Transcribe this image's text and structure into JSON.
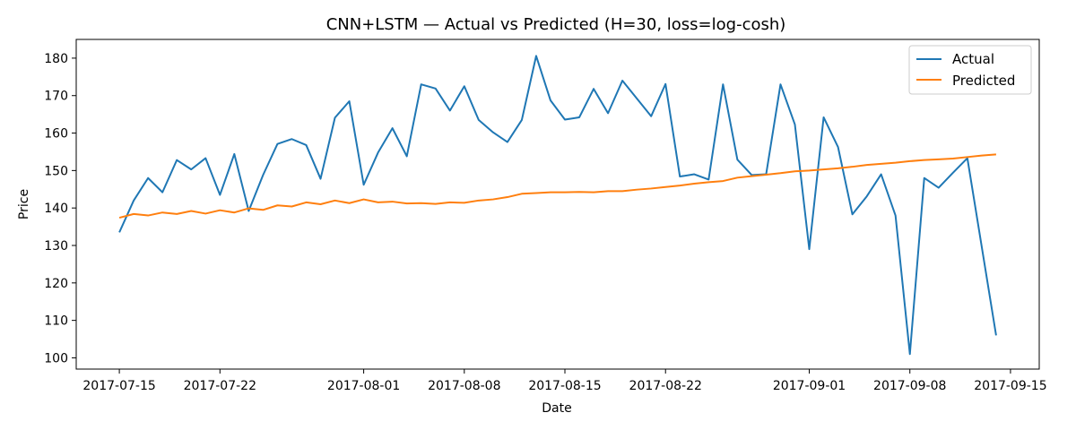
{
  "chart_data": {
    "type": "line",
    "title": "CNN+LSTM — Actual vs Predicted (H=30, loss=log-cosh)",
    "xlabel": "Date",
    "ylabel": "Price",
    "x_start": "2017-07-15",
    "x_range": [
      "2017-07-12",
      "2017-09-17"
    ],
    "ylim": [
      97,
      185
    ],
    "x_ticks": [
      {
        "date": "2017-07-15",
        "label": "2017-07-15"
      },
      {
        "date": "2017-07-22",
        "label": "2017-07-22"
      },
      {
        "date": "2017-08-01",
        "label": "2017-08-01"
      },
      {
        "date": "2017-08-08",
        "label": "2017-08-08"
      },
      {
        "date": "2017-08-15",
        "label": "2017-08-15"
      },
      {
        "date": "2017-08-22",
        "label": "2017-08-22"
      },
      {
        "date": "2017-09-01",
        "label": "2017-09-01"
      },
      {
        "date": "2017-09-08",
        "label": "2017-09-08"
      },
      {
        "date": "2017-09-15",
        "label": "2017-09-15"
      }
    ],
    "y_ticks": [
      100,
      110,
      120,
      130,
      140,
      150,
      160,
      170,
      180
    ],
    "legend": "top-right",
    "grid": false,
    "series": [
      {
        "name": "Actual",
        "color": "#1f77b4",
        "points": [
          [
            "2017-07-15",
            133.5
          ],
          [
            "2017-07-16",
            142.0
          ],
          [
            "2017-07-17",
            148.0
          ],
          [
            "2017-07-18",
            144.2
          ],
          [
            "2017-07-19",
            152.8
          ],
          [
            "2017-07-20",
            150.3
          ],
          [
            "2017-07-21",
            153.3
          ],
          [
            "2017-07-22",
            143.5
          ],
          [
            "2017-07-23",
            154.4
          ],
          [
            "2017-07-24",
            139.2
          ],
          [
            "2017-07-25",
            148.8
          ],
          [
            "2017-07-26",
            157.1
          ],
          [
            "2017-07-27",
            158.4
          ],
          [
            "2017-07-28",
            156.8
          ],
          [
            "2017-07-29",
            147.8
          ],
          [
            "2017-07-30",
            164.1
          ],
          [
            "2017-07-31",
            168.5
          ],
          [
            "2017-08-01",
            146.2
          ],
          [
            "2017-08-02",
            154.8
          ],
          [
            "2017-08-03",
            161.3
          ],
          [
            "2017-08-04",
            153.8
          ],
          [
            "2017-08-05",
            173.0
          ],
          [
            "2017-08-06",
            171.9
          ],
          [
            "2017-08-07",
            166.0
          ],
          [
            "2017-08-08",
            172.5
          ],
          [
            "2017-08-09",
            163.5
          ],
          [
            "2017-08-10",
            160.2
          ],
          [
            "2017-08-11",
            157.6
          ],
          [
            "2017-08-12",
            163.5
          ],
          [
            "2017-08-13",
            180.6
          ],
          [
            "2017-08-14",
            168.7
          ],
          [
            "2017-08-15",
            163.6
          ],
          [
            "2017-08-16",
            164.2
          ],
          [
            "2017-08-17",
            171.8
          ],
          [
            "2017-08-18",
            165.3
          ],
          [
            "2017-08-19",
            174.0
          ],
          [
            "2017-08-21",
            164.5
          ],
          [
            "2017-08-22",
            173.1
          ],
          [
            "2017-08-23",
            148.4
          ],
          [
            "2017-08-24",
            149.0
          ],
          [
            "2017-08-25",
            147.6
          ],
          [
            "2017-08-26",
            173.0
          ],
          [
            "2017-08-27",
            152.9
          ],
          [
            "2017-08-28",
            148.8
          ],
          [
            "2017-08-29",
            149.0
          ],
          [
            "2017-08-30",
            173.0
          ],
          [
            "2017-08-31",
            162.3
          ],
          [
            "2017-09-01",
            129.0
          ],
          [
            "2017-09-02",
            164.2
          ],
          [
            "2017-09-03",
            156.3
          ],
          [
            "2017-09-04",
            138.3
          ],
          [
            "2017-09-05",
            143.1
          ],
          [
            "2017-09-06",
            149.0
          ],
          [
            "2017-09-07",
            138.0
          ],
          [
            "2017-09-08",
            101.0
          ],
          [
            "2017-09-09",
            148.0
          ],
          [
            "2017-09-10",
            145.4
          ],
          [
            "2017-09-11",
            149.4
          ],
          [
            "2017-09-12",
            153.3
          ],
          [
            "2017-09-14",
            106.0
          ]
        ]
      },
      {
        "name": "Predicted",
        "color": "#ff7f0e",
        "points": [
          [
            "2017-07-15",
            137.4
          ],
          [
            "2017-07-16",
            138.4
          ],
          [
            "2017-07-17",
            138.0
          ],
          [
            "2017-07-18",
            138.8
          ],
          [
            "2017-07-19",
            138.4
          ],
          [
            "2017-07-20",
            139.2
          ],
          [
            "2017-07-21",
            138.5
          ],
          [
            "2017-07-22",
            139.4
          ],
          [
            "2017-07-23",
            138.8
          ],
          [
            "2017-07-24",
            139.9
          ],
          [
            "2017-07-25",
            139.5
          ],
          [
            "2017-07-26",
            140.7
          ],
          [
            "2017-07-27",
            140.4
          ],
          [
            "2017-07-28",
            141.5
          ],
          [
            "2017-07-29",
            141.0
          ],
          [
            "2017-07-30",
            142.0
          ],
          [
            "2017-07-31",
            141.3
          ],
          [
            "2017-08-01",
            142.3
          ],
          [
            "2017-08-02",
            141.5
          ],
          [
            "2017-08-03",
            141.7
          ],
          [
            "2017-08-04",
            141.2
          ],
          [
            "2017-08-05",
            141.3
          ],
          [
            "2017-08-06",
            141.1
          ],
          [
            "2017-08-07",
            141.5
          ],
          [
            "2017-08-08",
            141.4
          ],
          [
            "2017-08-09",
            142.0
          ],
          [
            "2017-08-10",
            142.3
          ],
          [
            "2017-08-11",
            142.9
          ],
          [
            "2017-08-12",
            143.8
          ],
          [
            "2017-08-13",
            144.0
          ],
          [
            "2017-08-14",
            144.2
          ],
          [
            "2017-08-15",
            144.2
          ],
          [
            "2017-08-16",
            144.3
          ],
          [
            "2017-08-17",
            144.2
          ],
          [
            "2017-08-18",
            144.5
          ],
          [
            "2017-08-19",
            144.5
          ],
          [
            "2017-08-20",
            144.9
          ],
          [
            "2017-08-21",
            145.2
          ],
          [
            "2017-08-22",
            145.6
          ],
          [
            "2017-08-23",
            146.0
          ],
          [
            "2017-08-24",
            146.5
          ],
          [
            "2017-08-25",
            146.9
          ],
          [
            "2017-08-26",
            147.2
          ],
          [
            "2017-08-27",
            148.1
          ],
          [
            "2017-08-28",
            148.5
          ],
          [
            "2017-08-29",
            148.9
          ],
          [
            "2017-08-30",
            149.3
          ],
          [
            "2017-08-31",
            149.8
          ],
          [
            "2017-09-01",
            150.0
          ],
          [
            "2017-09-02",
            150.3
          ],
          [
            "2017-09-03",
            150.6
          ],
          [
            "2017-09-04",
            151.0
          ],
          [
            "2017-09-05",
            151.5
          ],
          [
            "2017-09-06",
            151.8
          ],
          [
            "2017-09-07",
            152.1
          ],
          [
            "2017-09-08",
            152.5
          ],
          [
            "2017-09-09",
            152.8
          ],
          [
            "2017-09-10",
            153.0
          ],
          [
            "2017-09-11",
            153.2
          ],
          [
            "2017-09-12",
            153.6
          ],
          [
            "2017-09-13",
            154.0
          ],
          [
            "2017-09-14",
            154.3
          ]
        ]
      }
    ]
  }
}
